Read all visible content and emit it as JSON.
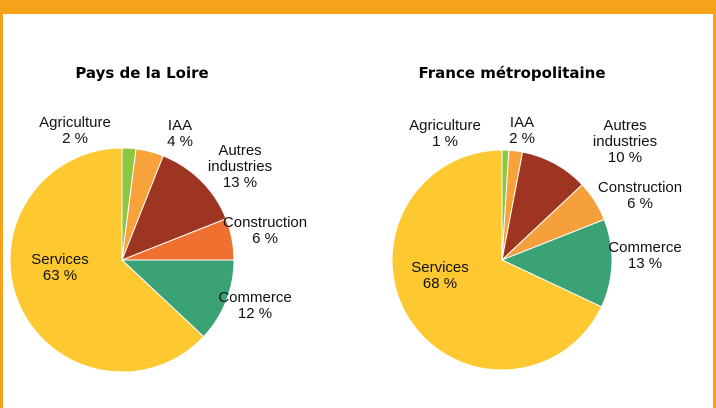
{
  "chart_data": [
    {
      "type": "pie",
      "title": "Pays de la Loire",
      "categories": [
        "Agriculture",
        "IAA",
        "Autres industries",
        "Construction",
        "Commerce",
        "Services"
      ],
      "values": [
        2,
        4,
        13,
        6,
        12,
        63
      ],
      "value_labels": [
        "2 %",
        "4 %",
        "13 %",
        "6 %",
        "12 %",
        "63 %"
      ],
      "colors": [
        "#8dc63f",
        "#f7a23b",
        "#9e3520",
        "#f07030",
        "#3aa274",
        "#fdc830"
      ]
    },
    {
      "type": "pie",
      "title": "France métropolitaine",
      "categories": [
        "Agriculture",
        "IAA",
        "Autres industries",
        "Construction",
        "Commerce",
        "Services"
      ],
      "values": [
        1,
        2,
        10,
        6,
        13,
        68
      ],
      "value_labels": [
        "1 %",
        "2 %",
        "10 %",
        "6 %",
        "13 %",
        "68 %"
      ],
      "colors": [
        "#8dc63f",
        "#f7a23b",
        "#9e3520",
        "#f5a03a",
        "#3aa274",
        "#fdc830"
      ]
    }
  ]
}
